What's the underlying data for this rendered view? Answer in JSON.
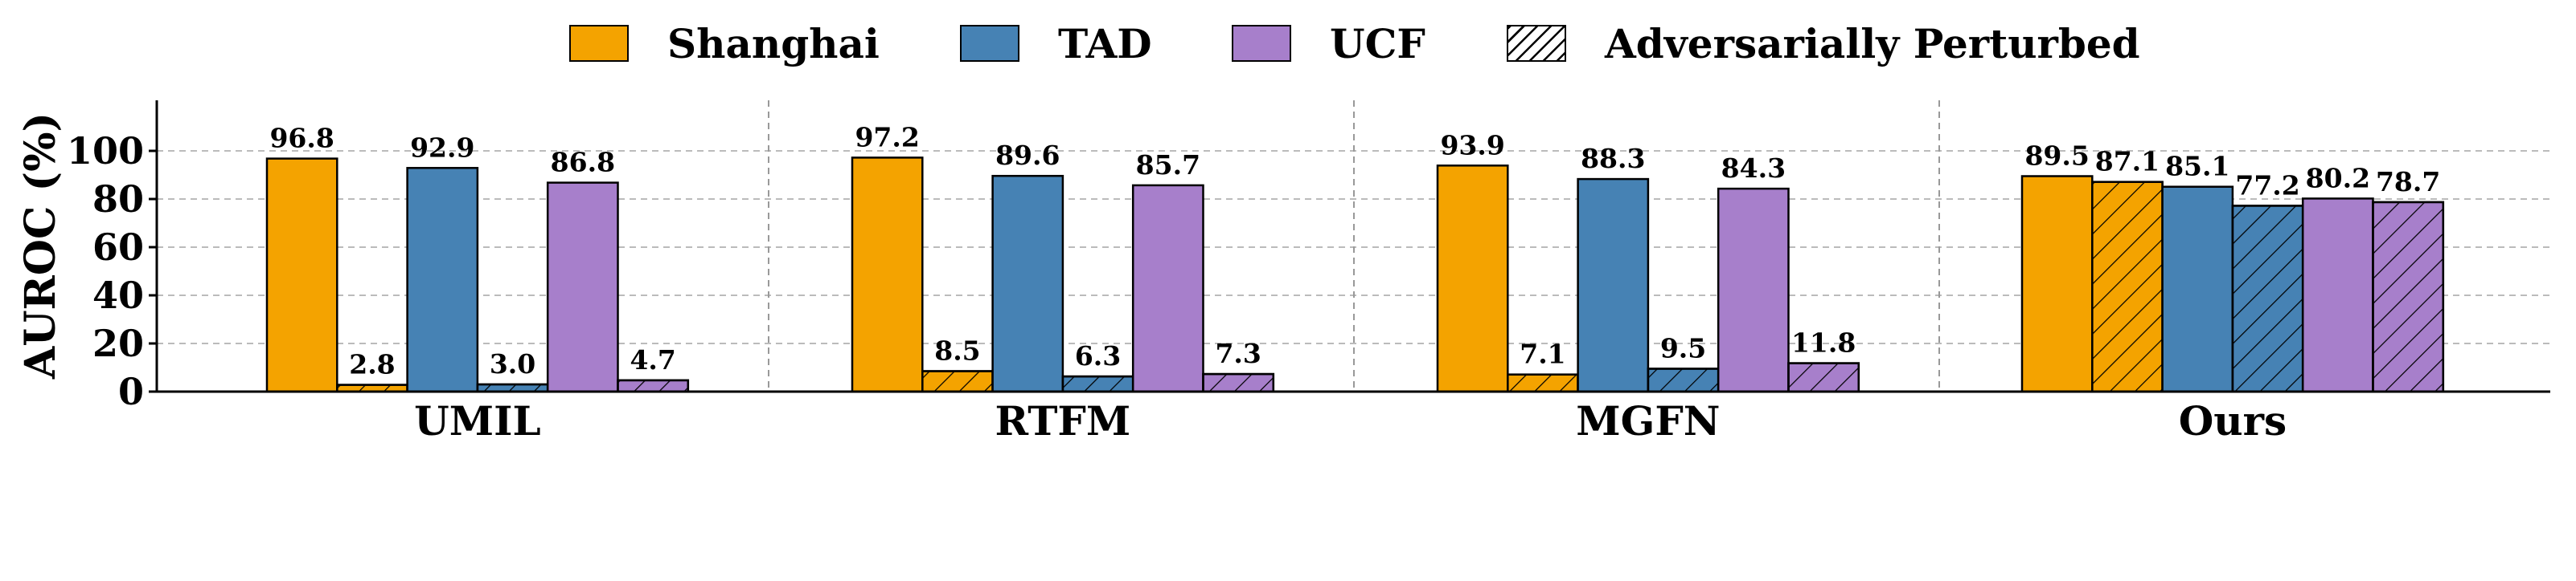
{
  "chart_data": {
    "type": "bar",
    "title": "",
    "xlabel": "",
    "ylabel": "AUROC (%)",
    "ylim": [
      0,
      120
    ],
    "yticks": [
      0,
      20,
      40,
      60,
      80,
      100
    ],
    "categories": [
      "UMIL",
      "RTFM",
      "MGFN",
      "Ours"
    ],
    "series": [
      {
        "name": "Shanghai",
        "values": [
          96.8,
          97.2,
          93.9,
          89.5
        ],
        "color": "#F4A300",
        "hatched": false
      },
      {
        "name": "Shanghai (Adversarially Perturbed)",
        "values": [
          2.8,
          8.5,
          7.1,
          87.1
        ],
        "color": "#F4A300",
        "hatched": true
      },
      {
        "name": "TAD",
        "values": [
          92.9,
          89.6,
          88.3,
          85.1
        ],
        "color": "#4682B4",
        "hatched": false
      },
      {
        "name": "TAD (Adversarially Perturbed)",
        "values": [
          3.0,
          6.3,
          9.5,
          77.2
        ],
        "color": "#4682B4",
        "hatched": true
      },
      {
        "name": "UCF",
        "values": [
          86.8,
          85.7,
          84.3,
          80.2
        ],
        "color": "#A77FCB",
        "hatched": false
      },
      {
        "name": "UCF (Adversarially Perturbed)",
        "values": [
          4.7,
          7.3,
          11.8,
          78.7
        ],
        "color": "#A77FCB",
        "hatched": true
      }
    ],
    "legend": {
      "position": "top-center",
      "entries": [
        {
          "label": "Shanghai",
          "color": "#F4A300",
          "hatched": false
        },
        {
          "label": "TAD",
          "color": "#4682B4",
          "hatched": false
        },
        {
          "label": "UCF",
          "color": "#A77FCB",
          "hatched": false
        },
        {
          "label": "Adversarially Perturbed",
          "color": "#FFFFFF",
          "hatched": true
        }
      ]
    },
    "grid": {
      "horizontal": true,
      "style": "dashed"
    },
    "group_separators": true
  }
}
